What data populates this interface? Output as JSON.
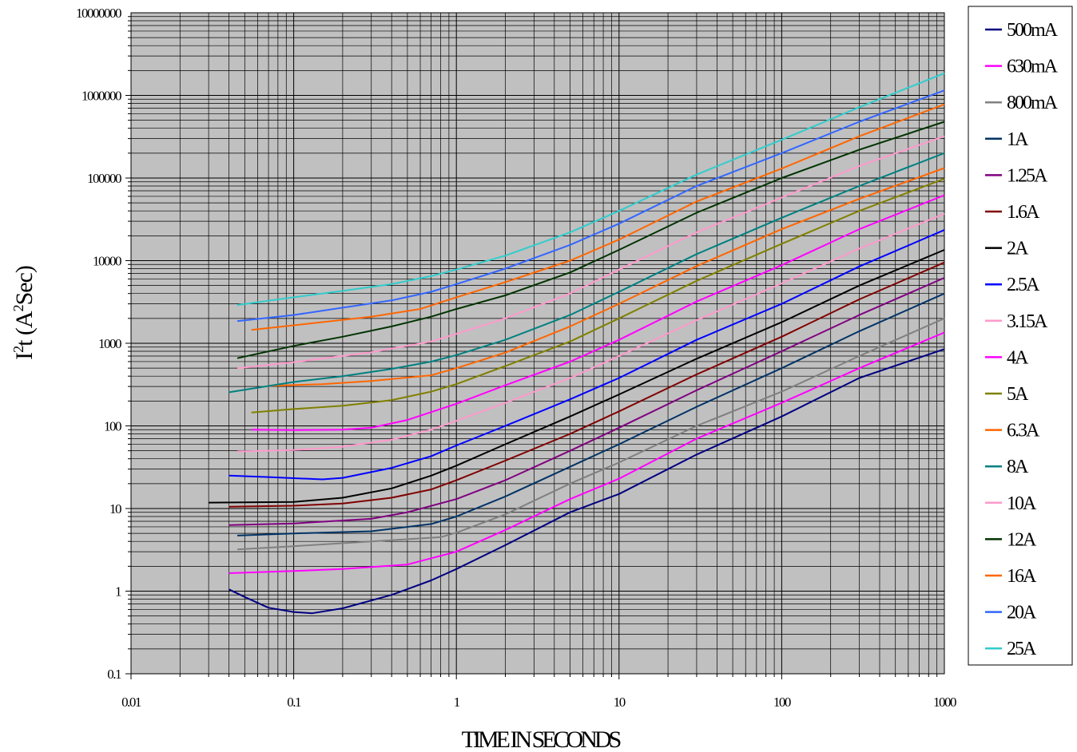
{
  "chart_data": {
    "type": "line",
    "title": "",
    "xlabel": "TIME IN SECONDS",
    "ylabel": "I2t (A2Sec)",
    "ylabel_parts": [
      "I",
      "2",
      "t (A",
      "2",
      "Sec)"
    ],
    "x_scale": "log",
    "y_scale": "log",
    "xlim": [
      0.01,
      1000
    ],
    "ylim": [
      0.1,
      10000000
    ],
    "x_ticks": [
      0.01,
      0.1,
      1,
      10,
      100,
      1000
    ],
    "x_tick_labels": [
      "0.01",
      "0.1",
      "1",
      "10",
      "100",
      "1000"
    ],
    "y_ticks": [
      0.1,
      1,
      10,
      100,
      1000,
      10000,
      100000,
      1000000,
      10000000
    ],
    "y_tick_labels": [
      "0.1",
      "1",
      "10",
      "100",
      "1000",
      "10000",
      "100000",
      "1000000",
      "10000000"
    ],
    "grid": true,
    "plot_background": "#c0c0c0",
    "legend_position": "right",
    "series": [
      {
        "name": "500mA",
        "color": "#000080",
        "points": [
          [
            0.04,
            1.05
          ],
          [
            0.05,
            0.85
          ],
          [
            0.07,
            0.63
          ],
          [
            0.1,
            0.56
          ],
          [
            0.13,
            0.54
          ],
          [
            0.2,
            0.62
          ],
          [
            0.4,
            0.9
          ],
          [
            0.7,
            1.35
          ],
          [
            1,
            1.85
          ],
          [
            2,
            3.6
          ],
          [
            5,
            9
          ],
          [
            10,
            15
          ],
          [
            30,
            45
          ],
          [
            100,
            130
          ],
          [
            300,
            380
          ],
          [
            1000,
            850
          ]
        ]
      },
      {
        "name": "630mA",
        "color": "#ff00ff",
        "points": [
          [
            0.04,
            1.65
          ],
          [
            0.1,
            1.75
          ],
          [
            0.2,
            1.85
          ],
          [
            0.5,
            2.1
          ],
          [
            0.7,
            2.5
          ],
          [
            1,
            3
          ],
          [
            2,
            5.5
          ],
          [
            5,
            13
          ],
          [
            10,
            23
          ],
          [
            30,
            70
          ],
          [
            100,
            190
          ],
          [
            300,
            500
          ],
          [
            1000,
            1350
          ]
        ]
      },
      {
        "name": "800mA",
        "color": "#808080",
        "points": [
          [
            0.045,
            3.2
          ],
          [
            0.1,
            3.5
          ],
          [
            0.3,
            4
          ],
          [
            0.8,
            4.5
          ],
          [
            1,
            5.1
          ],
          [
            2,
            8.5
          ],
          [
            5,
            20
          ],
          [
            10,
            36
          ],
          [
            30,
            100
          ],
          [
            100,
            260
          ],
          [
            300,
            700
          ],
          [
            1000,
            2000
          ]
        ]
      },
      {
        "name": "1A",
        "color": "#003366",
        "points": [
          [
            0.045,
            4.7
          ],
          [
            0.1,
            5
          ],
          [
            0.3,
            5.3
          ],
          [
            0.7,
            6.5
          ],
          [
            1,
            8
          ],
          [
            2,
            14
          ],
          [
            5,
            32
          ],
          [
            10,
            60
          ],
          [
            30,
            170
          ],
          [
            100,
            500
          ],
          [
            300,
            1400
          ],
          [
            1000,
            4000
          ]
        ]
      },
      {
        "name": "1.25A",
        "color": "#800080",
        "points": [
          [
            0.04,
            6.3
          ],
          [
            0.1,
            6.6
          ],
          [
            0.3,
            7.5
          ],
          [
            0.5,
            9
          ],
          [
            1,
            13
          ],
          [
            2,
            22
          ],
          [
            5,
            50
          ],
          [
            10,
            95
          ],
          [
            30,
            270
          ],
          [
            100,
            800
          ],
          [
            300,
            2200
          ],
          [
            1000,
            6200
          ]
        ]
      },
      {
        "name": "1.6A",
        "color": "#800000",
        "points": [
          [
            0.04,
            10.5
          ],
          [
            0.1,
            10.8
          ],
          [
            0.2,
            11.5
          ],
          [
            0.4,
            13.5
          ],
          [
            0.7,
            17
          ],
          [
            1,
            22
          ],
          [
            2,
            38
          ],
          [
            5,
            80
          ],
          [
            10,
            150
          ],
          [
            30,
            420
          ],
          [
            100,
            1200
          ],
          [
            300,
            3400
          ],
          [
            1000,
            9500
          ]
        ]
      },
      {
        "name": "2A",
        "color": "#000000",
        "points": [
          [
            0.03,
            11.8
          ],
          [
            0.1,
            12
          ],
          [
            0.2,
            13.5
          ],
          [
            0.4,
            17.5
          ],
          [
            0.7,
            25
          ],
          [
            1,
            33
          ],
          [
            2,
            60
          ],
          [
            5,
            130
          ],
          [
            10,
            240
          ],
          [
            30,
            650
          ],
          [
            100,
            1800
          ],
          [
            300,
            5000
          ],
          [
            1000,
            13500
          ]
        ]
      },
      {
        "name": "2.5A",
        "color": "#0000ff",
        "points": [
          [
            0.04,
            25
          ],
          [
            0.07,
            24
          ],
          [
            0.15,
            22.5
          ],
          [
            0.2,
            23.5
          ],
          [
            0.4,
            31
          ],
          [
            0.7,
            43
          ],
          [
            1,
            58
          ],
          [
            2,
            100
          ],
          [
            5,
            210
          ],
          [
            10,
            380
          ],
          [
            30,
            1100
          ],
          [
            100,
            3000
          ],
          [
            300,
            8500
          ],
          [
            1000,
            23500
          ]
        ]
      },
      {
        "name": "3.15A",
        "color": "#ff99cc",
        "points": [
          [
            0.045,
            49
          ],
          [
            0.1,
            51
          ],
          [
            0.2,
            56
          ],
          [
            0.4,
            68
          ],
          [
            0.7,
            90
          ],
          [
            1,
            115
          ],
          [
            2,
            190
          ],
          [
            5,
            380
          ],
          [
            10,
            700
          ],
          [
            30,
            1900
          ],
          [
            100,
            5300
          ],
          [
            300,
            14000
          ],
          [
            1000,
            37000
          ]
        ]
      },
      {
        "name": "4A",
        "color": "#ff00ff",
        "points": [
          [
            0.055,
            90
          ],
          [
            0.1,
            89
          ],
          [
            0.2,
            90
          ],
          [
            0.3,
            95
          ],
          [
            0.5,
            118
          ],
          [
            1,
            185
          ],
          [
            2,
            310
          ],
          [
            5,
            600
          ],
          [
            10,
            1100
          ],
          [
            30,
            3200
          ],
          [
            100,
            8800
          ],
          [
            300,
            24000
          ],
          [
            1000,
            62000
          ]
        ]
      },
      {
        "name": "5A",
        "color": "#808000",
        "points": [
          [
            0.055,
            145
          ],
          [
            0.1,
            160
          ],
          [
            0.2,
            175
          ],
          [
            0.4,
            205
          ],
          [
            0.7,
            260
          ],
          [
            1,
            320
          ],
          [
            2,
            530
          ],
          [
            5,
            1050
          ],
          [
            10,
            2000
          ],
          [
            30,
            5700
          ],
          [
            100,
            16000
          ],
          [
            300,
            40000
          ],
          [
            1000,
            98000
          ]
        ]
      },
      {
        "name": "6.3A",
        "color": "#ff6600",
        "points": [
          [
            0.07,
            305
          ],
          [
            0.15,
            320
          ],
          [
            0.3,
            350
          ],
          [
            0.7,
            410
          ],
          [
            1,
            500
          ],
          [
            2,
            770
          ],
          [
            5,
            1600
          ],
          [
            10,
            3000
          ],
          [
            30,
            8600
          ],
          [
            100,
            24000
          ],
          [
            300,
            56000
          ],
          [
            1000,
            132000
          ]
        ]
      },
      {
        "name": "8A",
        "color": "#008080",
        "points": [
          [
            0.04,
            255
          ],
          [
            0.1,
            340
          ],
          [
            0.2,
            400
          ],
          [
            0.4,
            490
          ],
          [
            0.7,
            600
          ],
          [
            1,
            720
          ],
          [
            2,
            1100
          ],
          [
            5,
            2200
          ],
          [
            10,
            4200
          ],
          [
            30,
            12000
          ],
          [
            100,
            33000
          ],
          [
            300,
            80000
          ],
          [
            1000,
            200000
          ]
        ]
      },
      {
        "name": "10A",
        "color": "#ff99cc",
        "points": [
          [
            0.045,
            500
          ],
          [
            0.1,
            590
          ],
          [
            0.3,
            780
          ],
          [
            0.7,
            1050
          ],
          [
            1,
            1300
          ],
          [
            2,
            2000
          ],
          [
            5,
            4000
          ],
          [
            10,
            7800
          ],
          [
            30,
            22000
          ],
          [
            100,
            58000
          ],
          [
            300,
            140000
          ],
          [
            1000,
            320000
          ]
        ]
      },
      {
        "name": "12A",
        "color": "#003300",
        "points": [
          [
            0.045,
            660
          ],
          [
            0.1,
            930
          ],
          [
            0.2,
            1200
          ],
          [
            0.4,
            1600
          ],
          [
            0.7,
            2100
          ],
          [
            1,
            2600
          ],
          [
            2,
            3800
          ],
          [
            5,
            7200
          ],
          [
            10,
            13500
          ],
          [
            30,
            38000
          ],
          [
            100,
            100000
          ],
          [
            300,
            220000
          ],
          [
            1000,
            480000
          ]
        ]
      },
      {
        "name": "16A",
        "color": "#ff6600",
        "points": [
          [
            0.055,
            1450
          ],
          [
            0.1,
            1650
          ],
          [
            0.3,
            2100
          ],
          [
            0.6,
            2600
          ],
          [
            1,
            3600
          ],
          [
            2,
            5500
          ],
          [
            5,
            10000
          ],
          [
            10,
            18000
          ],
          [
            30,
            52000
          ],
          [
            100,
            130000
          ],
          [
            300,
            320000
          ],
          [
            1000,
            780000
          ]
        ]
      },
      {
        "name": "20A",
        "color": "#3366ff",
        "points": [
          [
            0.045,
            1850
          ],
          [
            0.1,
            2200
          ],
          [
            0.2,
            2700
          ],
          [
            0.4,
            3300
          ],
          [
            0.7,
            4200
          ],
          [
            1,
            5200
          ],
          [
            2,
            8000
          ],
          [
            5,
            15500
          ],
          [
            10,
            28000
          ],
          [
            30,
            80000
          ],
          [
            100,
            200000
          ],
          [
            300,
            480000
          ],
          [
            1000,
            1150000
          ]
        ]
      },
      {
        "name": "25A",
        "color": "#33cccc",
        "points": [
          [
            0.045,
            2900
          ],
          [
            0.1,
            3600
          ],
          [
            0.2,
            4300
          ],
          [
            0.4,
            5200
          ],
          [
            0.7,
            6500
          ],
          [
            1,
            7800
          ],
          [
            2,
            11500
          ],
          [
            5,
            22000
          ],
          [
            10,
            40000
          ],
          [
            30,
            110000
          ],
          [
            100,
            290000
          ],
          [
            300,
            720000
          ],
          [
            1000,
            1850000
          ]
        ]
      }
    ]
  }
}
